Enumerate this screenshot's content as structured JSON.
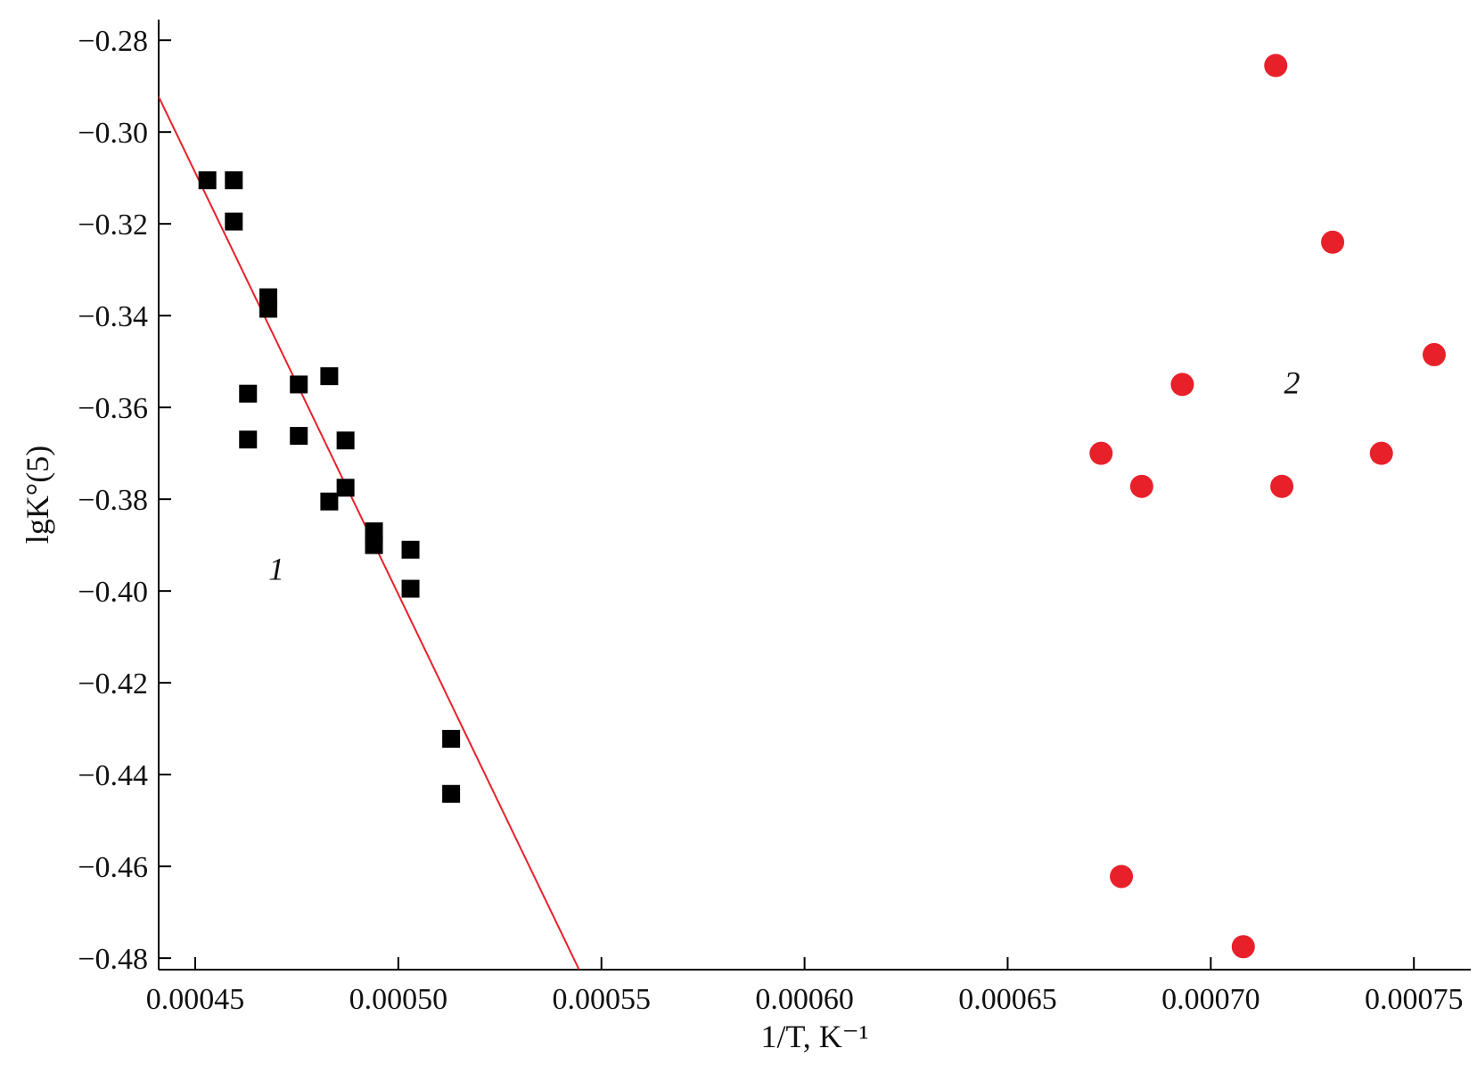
{
  "chart_data": {
    "type": "scatter",
    "title": "",
    "xlabel": "1/T, K⁻¹",
    "ylabel": "lgK°(5)",
    "xlim": [
      0.000441,
      0.000764
    ],
    "ylim": [
      -0.4825,
      -0.2755
    ],
    "x_ticks": [
      0.00045,
      0.0005,
      0.00055,
      0.0006,
      0.00065,
      0.0007,
      0.00075
    ],
    "x_tick_labels": [
      "0.00045",
      "0.00050",
      "0.00055",
      "0.00060",
      "0.00065",
      "0.00070",
      "0.00075"
    ],
    "y_ticks": [
      -0.28,
      -0.3,
      -0.32,
      -0.34,
      -0.36,
      -0.38,
      -0.4,
      -0.42,
      -0.44,
      -0.46,
      -0.48
    ],
    "y_tick_labels": [
      "−0.28",
      "−0.30",
      "−0.32",
      "−0.34",
      "−0.36",
      "−0.38",
      "−0.40",
      "−0.42",
      "−0.44",
      "−0.46",
      "−0.48"
    ],
    "grid": false,
    "legend": "none",
    "series": [
      {
        "marker": "square",
        "color": "#000000",
        "label": "1",
        "label_pos": {
          "x": 0.00047,
          "y": -0.3975
        },
        "points": [
          [
            0.000453,
            -0.3105
          ],
          [
            0.0004595,
            -0.3105
          ],
          [
            0.0004595,
            -0.3195
          ],
          [
            0.000468,
            -0.336
          ],
          [
            0.000468,
            -0.3385
          ],
          [
            0.000463,
            -0.357
          ],
          [
            0.000463,
            -0.367
          ],
          [
            0.0004755,
            -0.355
          ],
          [
            0.0004755,
            -0.3662
          ],
          [
            0.000483,
            -0.3532
          ],
          [
            0.000487,
            -0.3672
          ],
          [
            0.000487,
            -0.3775
          ],
          [
            0.000483,
            -0.3805
          ],
          [
            0.000494,
            -0.387
          ],
          [
            0.000494,
            -0.39
          ],
          [
            0.000503,
            -0.391
          ],
          [
            0.000503,
            -0.3995
          ],
          [
            0.000513,
            -0.4322
          ],
          [
            0.000513,
            -0.4442
          ]
        ]
      },
      {
        "marker": "circle",
        "color": "#e8202a",
        "label": "2",
        "label_pos": {
          "x": 0.00072,
          "y": -0.357
        },
        "points": [
          [
            0.000716,
            -0.2855
          ],
          [
            0.00073,
            -0.324
          ],
          [
            0.000755,
            -0.3485
          ],
          [
            0.000693,
            -0.355
          ],
          [
            0.000673,
            -0.37
          ],
          [
            0.000742,
            -0.37
          ],
          [
            0.000683,
            -0.3772
          ],
          [
            0.0007175,
            -0.3772
          ],
          [
            0.000678,
            -0.4622
          ],
          [
            0.000708,
            -0.4775
          ]
        ]
      }
    ],
    "fit_line": {
      "color": "#e8202a",
      "x": [
        0.000441,
        0.0005445
      ],
      "y": [
        -0.2923,
        -0.4825
      ]
    }
  }
}
